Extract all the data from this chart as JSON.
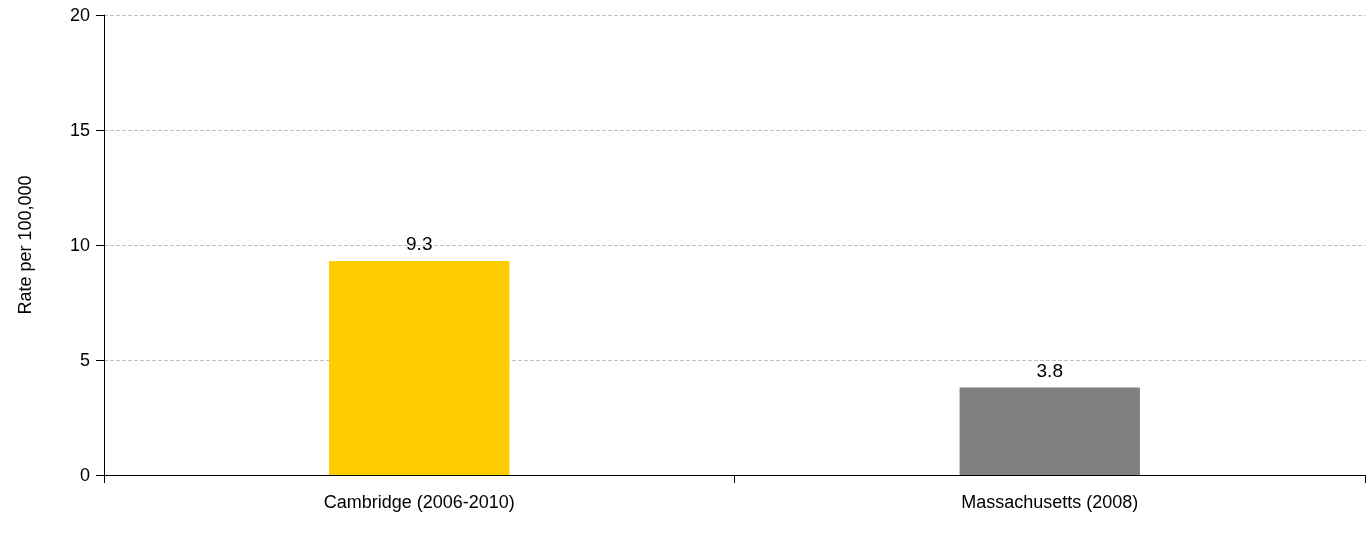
{
  "chart_data": {
    "type": "bar",
    "ylabel": "Rate per 100,000",
    "categories": [
      "Cambridge (2006-2010)",
      "Massachusetts (2008)"
    ],
    "values": [
      9.3,
      3.8
    ],
    "colors": [
      "#ffcc00",
      "#808080"
    ],
    "ylim": [
      0,
      20
    ],
    "yticks": [
      0,
      5,
      10,
      15,
      20
    ],
    "grid": "y",
    "data_labels": true
  }
}
